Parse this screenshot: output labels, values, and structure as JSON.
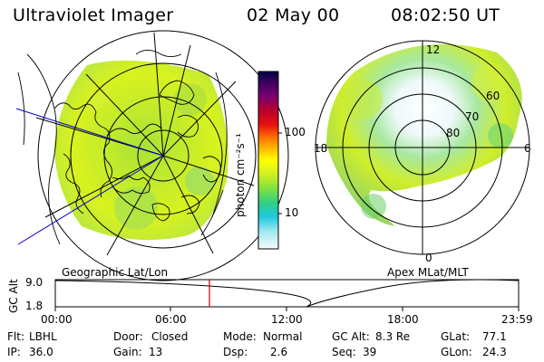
{
  "header": {
    "title": "Ultraviolet Imager",
    "date": "02 May 00",
    "time": "08:02:50 UT"
  },
  "colorbar": {
    "unit_label": "photon cm⁻²s⁻¹",
    "ticks": [
      "100",
      "10"
    ],
    "colors": [
      "#000040",
      "#3a0060",
      "#7a0070",
      "#b8002a",
      "#e81010",
      "#ff7a00",
      "#ffc000",
      "#ffff00",
      "#d0f020",
      "#80e040",
      "#30d080",
      "#20c8e0",
      "#a0e8f0",
      "#f4fbfc"
    ]
  },
  "maps": {
    "left_caption": "Geographic Lat/Lon",
    "right_caption": "Apex MLat/MLT",
    "mlt_labels": {
      "top": "12",
      "left": "18",
      "right": "6",
      "bottom": "0"
    },
    "mlat_labels": [
      "60",
      "70",
      "80"
    ]
  },
  "altitude_plot": {
    "ylabel": "GC Alt",
    "y_ticks": [
      "9.0",
      "1.8"
    ],
    "x_ticks": [
      "00:00",
      "06:00",
      "12:00",
      "18:00",
      "23:59"
    ],
    "marker_color": "#cc0000"
  },
  "info": {
    "rows": [
      [
        {
          "label": "Flt:",
          "value": "LBHL"
        },
        {
          "label": "Door:",
          "value": "Closed"
        },
        {
          "label": "Mode:",
          "value": "Normal"
        },
        {
          "label": "GC Alt:",
          "value": "8.3 Re"
        },
        {
          "label": "GLat:",
          "value": "77.1"
        }
      ],
      [
        {
          "label": "IP:",
          "value": "36.0"
        },
        {
          "label": "Gain:",
          "value": "13"
        },
        {
          "label": "Dsp:",
          "value": "2.6"
        },
        {
          "label": "Seq:",
          "value": "39"
        },
        {
          "label": "GLon:",
          "value": "24.3"
        }
      ]
    ]
  }
}
